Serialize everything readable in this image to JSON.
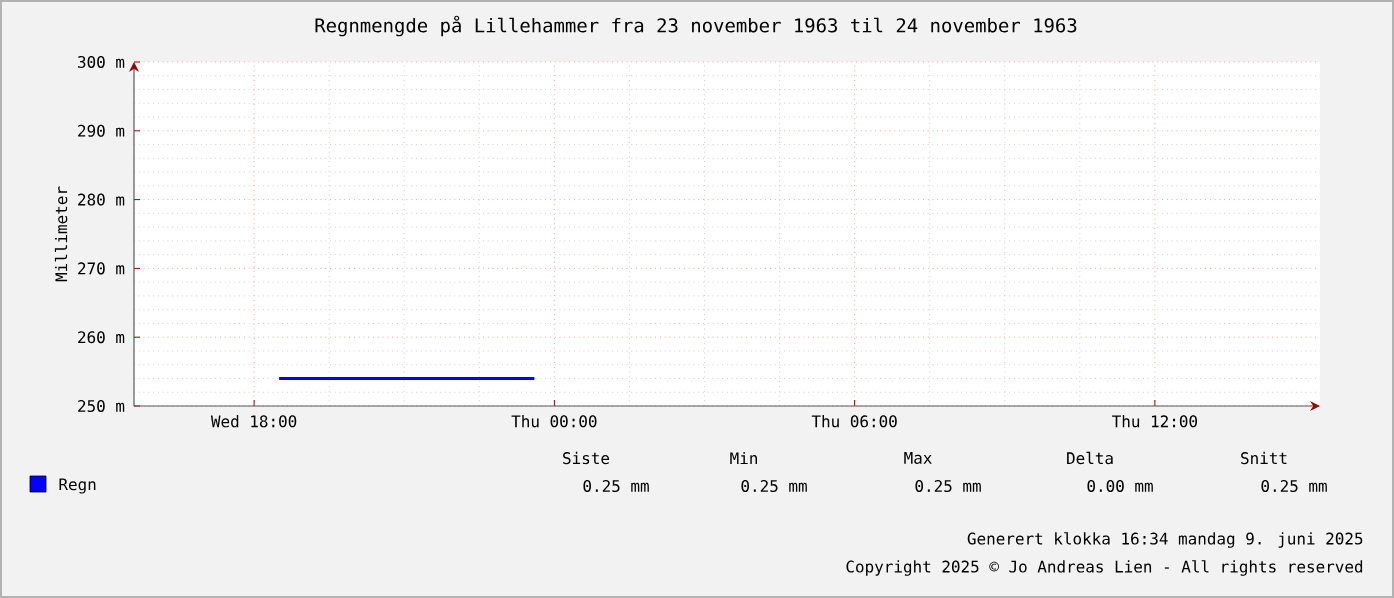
{
  "chart_data": {
    "type": "line",
    "title": "Regnmengde på Lillehammer fra 23 november 1963 til 24 november 1963",
    "ylabel": "Millimeter",
    "x": [
      "1963-11-23T18:30",
      "1963-11-23T23:36"
    ],
    "series": [
      {
        "name": "Regn",
        "color": "#0000ff",
        "values": [
          254,
          254
        ]
      }
    ],
    "xlim": [
      "1963-11-23T15:36",
      "1963-11-24T15:18"
    ],
    "xticks": [
      {
        "value": "1963-11-23T18:00",
        "label": "Wed 18:00"
      },
      {
        "value": "1963-11-24T00:00",
        "label": "Thu 00:00"
      },
      {
        "value": "1963-11-24T06:00",
        "label": "Thu 06:00"
      },
      {
        "value": "1963-11-24T12:00",
        "label": "Thu 12:00"
      }
    ],
    "ylim": [
      250,
      300
    ],
    "yticks": [
      {
        "value": 250,
        "label": "250 m"
      },
      {
        "value": 260,
        "label": "260 m"
      },
      {
        "value": 270,
        "label": "270 m"
      },
      {
        "value": 280,
        "label": "280 m"
      },
      {
        "value": 290,
        "label": "290 m"
      },
      {
        "value": 300,
        "label": "300 m"
      }
    ],
    "grid": true,
    "legend": "bottom left",
    "marker": "none",
    "line_style": "solid",
    "annotations": [
      "Siste",
      "Min",
      "Max",
      "Delta",
      "Snitt",
      "0.25 mm",
      "0.25 mm",
      "0.25 mm",
      "0.00 mm",
      "0.25 mm",
      "Generert klokka 16:34 mandag 9. juni 2025",
      "Copyright 2025 © Jo Andreas Lien - All rights reserved"
    ]
  }
}
